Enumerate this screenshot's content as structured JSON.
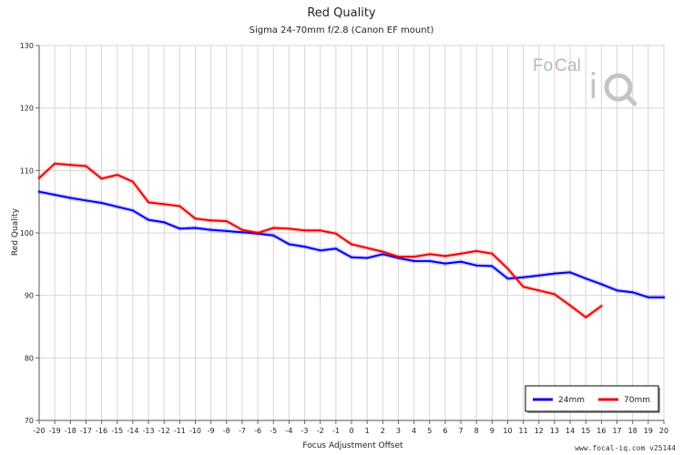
{
  "chart_data": {
    "type": "line",
    "title": "Red Quality",
    "subtitle": "Sigma 24-70mm f/2.8 (Canon EF mount)",
    "xlabel": "Focus Adjustment Offset",
    "ylabel": "Red Quality",
    "xlim": [
      -20,
      20
    ],
    "ylim": [
      70,
      130
    ],
    "x_ticks": [
      -20,
      -19,
      -18,
      -17,
      -16,
      -15,
      -14,
      -13,
      -12,
      -11,
      -10,
      -9,
      -8,
      -7,
      -6,
      -5,
      -4,
      -3,
      -2,
      -1,
      0,
      1,
      2,
      3,
      4,
      5,
      6,
      7,
      8,
      9,
      10,
      11,
      12,
      13,
      14,
      15,
      16,
      17,
      18,
      19,
      20
    ],
    "y_ticks": [
      70,
      80,
      90,
      100,
      110,
      120,
      130
    ],
    "grid": true,
    "legend_position": "bottom-right",
    "series": [
      {
        "name": "24mm",
        "color": "#0000ee",
        "points": [
          [
            -20,
            106.6
          ],
          [
            -19,
            106.1
          ],
          [
            -18,
            105.6
          ],
          [
            -17,
            105.2
          ],
          [
            -16,
            104.8
          ],
          [
            -15,
            104.2
          ],
          [
            -14,
            103.6
          ],
          [
            -13,
            102.1
          ],
          [
            -12,
            101.7
          ],
          [
            -11,
            100.7
          ],
          [
            -10,
            100.8
          ],
          [
            -9,
            100.5
          ],
          [
            -8,
            100.3
          ],
          [
            -7,
            100.1
          ],
          [
            -6,
            99.9
          ],
          [
            -5,
            99.6
          ],
          [
            -4,
            98.2
          ],
          [
            -3,
            97.8
          ],
          [
            -2,
            97.2
          ],
          [
            -1,
            97.5
          ],
          [
            0,
            96.1
          ],
          [
            1,
            96.0
          ],
          [
            2,
            96.6
          ],
          [
            3,
            96.0
          ],
          [
            4,
            95.5
          ],
          [
            5,
            95.5
          ],
          [
            6,
            95.1
          ],
          [
            7,
            95.4
          ],
          [
            8,
            94.8
          ],
          [
            9,
            94.7
          ],
          [
            10,
            92.7
          ],
          [
            11,
            92.9
          ],
          [
            12,
            93.2
          ],
          [
            13,
            93.5
          ],
          [
            14,
            93.7
          ],
          [
            15,
            92.7
          ],
          [
            16,
            91.8
          ],
          [
            17,
            90.8
          ],
          [
            18,
            90.5
          ],
          [
            19,
            89.7
          ],
          [
            20,
            89.7
          ]
        ]
      },
      {
        "name": "70mm",
        "color": "#ee0000",
        "points": [
          [
            -20,
            108.8
          ],
          [
            -19,
            111.1
          ],
          [
            -18,
            110.9
          ],
          [
            -17,
            110.7
          ],
          [
            -16,
            108.7
          ],
          [
            -15,
            109.3
          ],
          [
            -14,
            108.2
          ],
          [
            -13,
            104.9
          ],
          [
            -12,
            104.6
          ],
          [
            -11,
            104.3
          ],
          [
            -10,
            102.3
          ],
          [
            -9,
            102.0
          ],
          [
            -8,
            101.9
          ],
          [
            -7,
            100.5
          ],
          [
            -6,
            100.0
          ],
          [
            -5,
            100.8
          ],
          [
            -4,
            100.7
          ],
          [
            -3,
            100.4
          ],
          [
            -2,
            100.4
          ],
          [
            -1,
            99.9
          ],
          [
            0,
            98.2
          ],
          [
            1,
            97.6
          ],
          [
            2,
            97.0
          ],
          [
            3,
            96.2
          ],
          [
            4,
            96.2
          ],
          [
            5,
            96.6
          ],
          [
            6,
            96.3
          ],
          [
            7,
            96.7
          ],
          [
            8,
            97.1
          ],
          [
            9,
            96.7
          ],
          [
            10,
            94.3
          ],
          [
            11,
            91.4
          ],
          [
            12,
            90.8
          ],
          [
            13,
            90.2
          ],
          [
            14,
            88.4
          ],
          [
            15,
            86.5
          ],
          [
            16,
            88.3
          ]
        ]
      }
    ]
  },
  "logo": {
    "text_top": "FoCal",
    "text_bottom": "iQ"
  },
  "footer": "www.focal-iq.com  v25144"
}
